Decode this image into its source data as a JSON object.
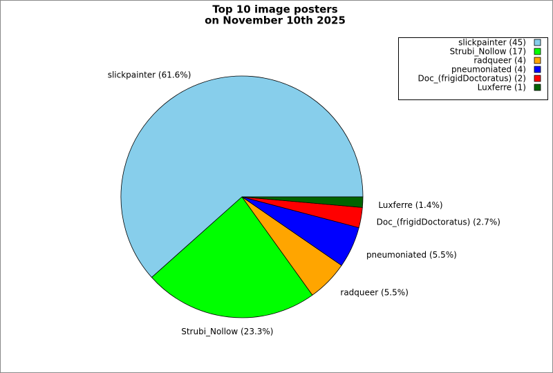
{
  "chart_data": {
    "type": "pie",
    "title": [
      "Top 10 image posters",
      "on November 10th 2025"
    ],
    "categories": [
      "slickpainter (45)",
      "Strubi_Nollow (17)",
      "radqueer (4)",
      "pneumoniated (4)",
      "Doc_(frigidDoctoratus) (2)",
      "Luxferre (1)"
    ],
    "values": [
      61.6,
      23.3,
      5.5,
      5.5,
      2.7,
      1.4
    ],
    "value_labels": [
      "slickpainter (61.6%)",
      "Strubi_Nollow (23.3%)",
      "radqueer (5.5%)",
      "pneumoniated (5.5%)",
      "Doc_(frigidDoctoratus) (2.7%)",
      "Luxferre (1.4%)"
    ],
    "colors": [
      "#87ceeb",
      "#00ff00",
      "#ffa500",
      "#0000ff",
      "#ff0000",
      "#006400"
    ],
    "legend": "upper right"
  }
}
